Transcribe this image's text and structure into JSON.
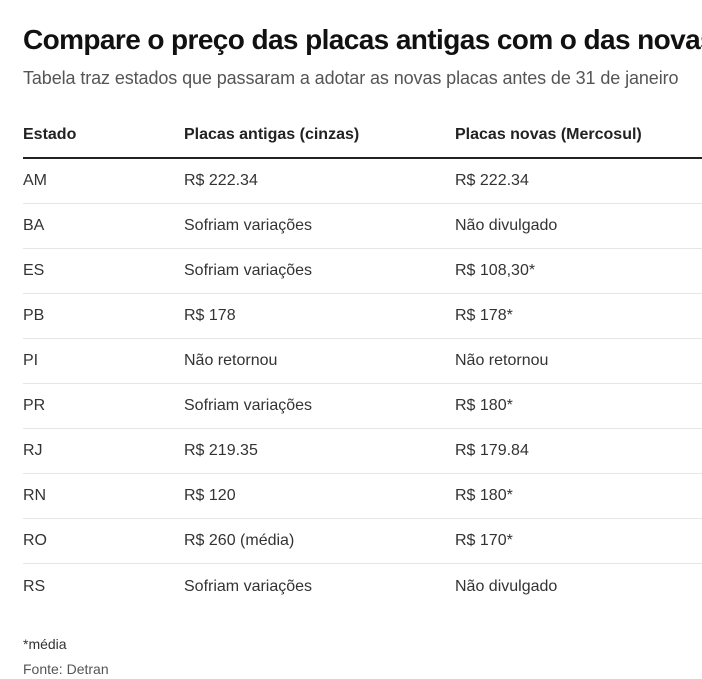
{
  "title": "Compare o preço das placas antigas com o das novas",
  "subtitle": "Tabela traz estados que passaram a adotar as novas placas antes de 31 de janeiro",
  "table": {
    "headers": [
      "Estado",
      "Placas antigas (cinzas)",
      "Placas novas (Mercosul)"
    ],
    "rows": [
      [
        "AM",
        "R$ 222.34",
        "R$ 222.34"
      ],
      [
        "BA",
        "Sofriam variações",
        "Não divulgado"
      ],
      [
        "ES",
        "Sofriam variações",
        "R$ 108,30*"
      ],
      [
        "PB",
        "R$ 178",
        "R$ 178*"
      ],
      [
        "PI",
        "Não retornou",
        "Não retornou"
      ],
      [
        "PR",
        "Sofriam variações",
        "R$ 180*"
      ],
      [
        "RJ",
        "R$ 219.35",
        "R$ 179.84"
      ],
      [
        "RN",
        "R$ 120",
        "R$ 180*"
      ],
      [
        "RO",
        "R$ 260 (média)",
        "R$ 170*"
      ],
      [
        "RS",
        "Sofriam variações",
        "Não divulgado"
      ]
    ]
  },
  "footnote": "*média",
  "source": "Fonte: Detran"
}
